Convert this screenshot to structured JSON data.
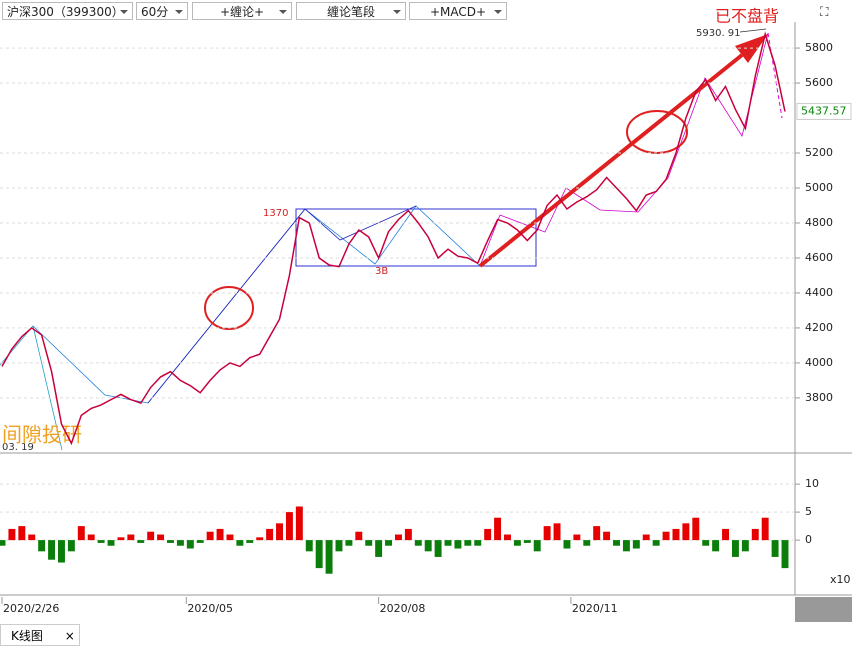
{
  "toolbar": {
    "symbol": "沪深300（399300）",
    "period": "60分",
    "indicator1": "+缠论+",
    "indicator2": "缠论笔段",
    "indicator3": "+MACD+"
  },
  "tab": {
    "label": "K线图",
    "close": "×"
  },
  "chart_data": [
    {
      "type": "line",
      "color": "#c8003c",
      "ylim": [
        3485,
        5949
      ],
      "yticks": [
        3800,
        4000,
        4200,
        4400,
        4600,
        4800,
        5000,
        5200,
        5600,
        5800
      ],
      "grid": true,
      "xlim": [
        0,
        79
      ],
      "xticks": [
        {
          "value": 0,
          "label": "2020/2/26"
        },
        {
          "value": 18.6,
          "label": "2020/05"
        },
        {
          "value": 38,
          "label": "2020/08"
        },
        {
          "value": 57.4,
          "label": "2020/11"
        }
      ],
      "values": [
        3980,
        4080,
        4150,
        4200,
        4160,
        3950,
        3650,
        3540,
        3700,
        3740,
        3760,
        3790,
        3820,
        3790,
        3770,
        3860,
        3920,
        3950,
        3900,
        3870,
        3830,
        3900,
        3960,
        4000,
        3980,
        4030,
        4050,
        4150,
        4250,
        4500,
        4830,
        4800,
        4600,
        4560,
        4550,
        4680,
        4760,
        4720,
        4600,
        4750,
        4820,
        4870,
        4800,
        4720,
        4600,
        4650,
        4610,
        4600,
        4570,
        4700,
        4820,
        4800,
        4760,
        4700,
        4760,
        4900,
        4960,
        4880,
        4920,
        4950,
        4990,
        5060,
        5000,
        4940,
        4870,
        4960,
        4980,
        5050,
        5200,
        5400,
        5550,
        5620,
        5500,
        5580,
        5450,
        5340,
        5640,
        5880,
        5700,
        5437.57
      ],
      "annotations": {
        "warning": "已不盘背",
        "high": "5930. 91",
        "low": "03. 19",
        "box_label": "1370",
        "point_label": "3B",
        "watermark": "间隙投研"
      }
    },
    {
      "type": "bar",
      "ylim": [
        -9.8,
        15.2
      ],
      "yticks": [
        0,
        5,
        10
      ],
      "unit": "x10",
      "up_color": "#e60000",
      "down_color": "#0a7d0a",
      "xlim": [
        0,
        79
      ],
      "values": [
        -1,
        2,
        2.5,
        1,
        -2,
        -3.5,
        -4,
        -2,
        2.5,
        1,
        -0.5,
        -1,
        0.5,
        1,
        -0.5,
        1.5,
        1,
        -0.5,
        -1,
        -1.5,
        -0.5,
        1.5,
        2,
        1,
        -1,
        -0.5,
        0.5,
        2,
        3,
        5,
        6,
        -2,
        -5,
        -6,
        -2,
        -1,
        1.5,
        -1,
        -3,
        -1,
        1,
        2,
        -1,
        -2,
        -3,
        -1,
        -1.5,
        -1,
        -1,
        2,
        4,
        1,
        -1,
        -0.5,
        -2,
        2.5,
        3,
        -1.5,
        1,
        -1,
        2.5,
        1.5,
        -1,
        -2,
        -1.5,
        1,
        -1,
        1.5,
        2,
        3,
        4,
        -1,
        -2,
        2,
        -3,
        -2,
        2,
        4,
        -3,
        -5
      ]
    }
  ]
}
